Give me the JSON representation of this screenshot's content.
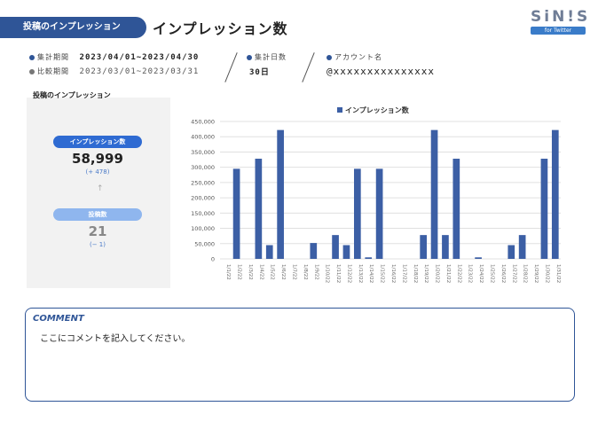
{
  "header": {
    "section_label": "投稿のインプレッション",
    "page_title": "インプレッション数"
  },
  "logo": {
    "text": "SiN!S",
    "sub": "for Twitter"
  },
  "meta": {
    "period_label": "集計期間",
    "period_value": "2023/04/01~2023/04/30",
    "compare_label": "比較期間",
    "compare_value": "2023/03/01~2023/03/31",
    "days_label": "集計日数",
    "days_value": "30日",
    "account_label": "アカウント名",
    "account_value": "@xxxxxxxxxxxxxxx"
  },
  "summary": {
    "card_title": "投稿のインプレッション",
    "impressions_label": "インプレッション数",
    "impressions_value": "58,999",
    "impressions_diff": "(+ 478)",
    "posts_label": "投稿数",
    "posts_value": "21",
    "posts_diff": "(− 1)"
  },
  "colors": {
    "accent": "#2f5597",
    "bar": "#3c5fa5",
    "pill_blue": "#2f6bd2",
    "pill_light": "#8fb6ee"
  },
  "chart_data": {
    "type": "bar",
    "legend": "インプレッション数",
    "ylim": [
      0,
      450000
    ],
    "yticks": [
      "0",
      "50,000",
      "100,000",
      "150,000",
      "200,000",
      "250,000",
      "300,000",
      "350,000",
      "400,000",
      "450,000"
    ],
    "categories": [
      "1/1/22",
      "1/2/22",
      "1/3/22",
      "1/4/22",
      "1/5/22",
      "1/6/22",
      "1/7/22",
      "1/8/22",
      "1/9/22",
      "1/10/22",
      "1/11/22",
      "1/12/22",
      "1/13/22",
      "1/14/22",
      "1/15/22",
      "1/16/22",
      "1/17/22",
      "1/18/22",
      "1/19/22",
      "1/20/22",
      "1/21/22",
      "1/22/22",
      "1/23/22",
      "1/24/22",
      "1/25/22",
      "1/26/22",
      "1/27/22",
      "1/28/22",
      "1/29/22",
      "1/30/22",
      "1/31/22"
    ],
    "values": [
      0,
      295000,
      0,
      328000,
      45000,
      422000,
      0,
      0,
      52000,
      0,
      78000,
      45000,
      295000,
      5000,
      295000,
      0,
      0,
      0,
      78000,
      422000,
      78000,
      328000,
      0,
      5000,
      0,
      0,
      45000,
      78000,
      0,
      328000,
      422000
    ]
  },
  "comment": {
    "title": "COMMENT",
    "text": "ここにコメントを記入してください。"
  }
}
